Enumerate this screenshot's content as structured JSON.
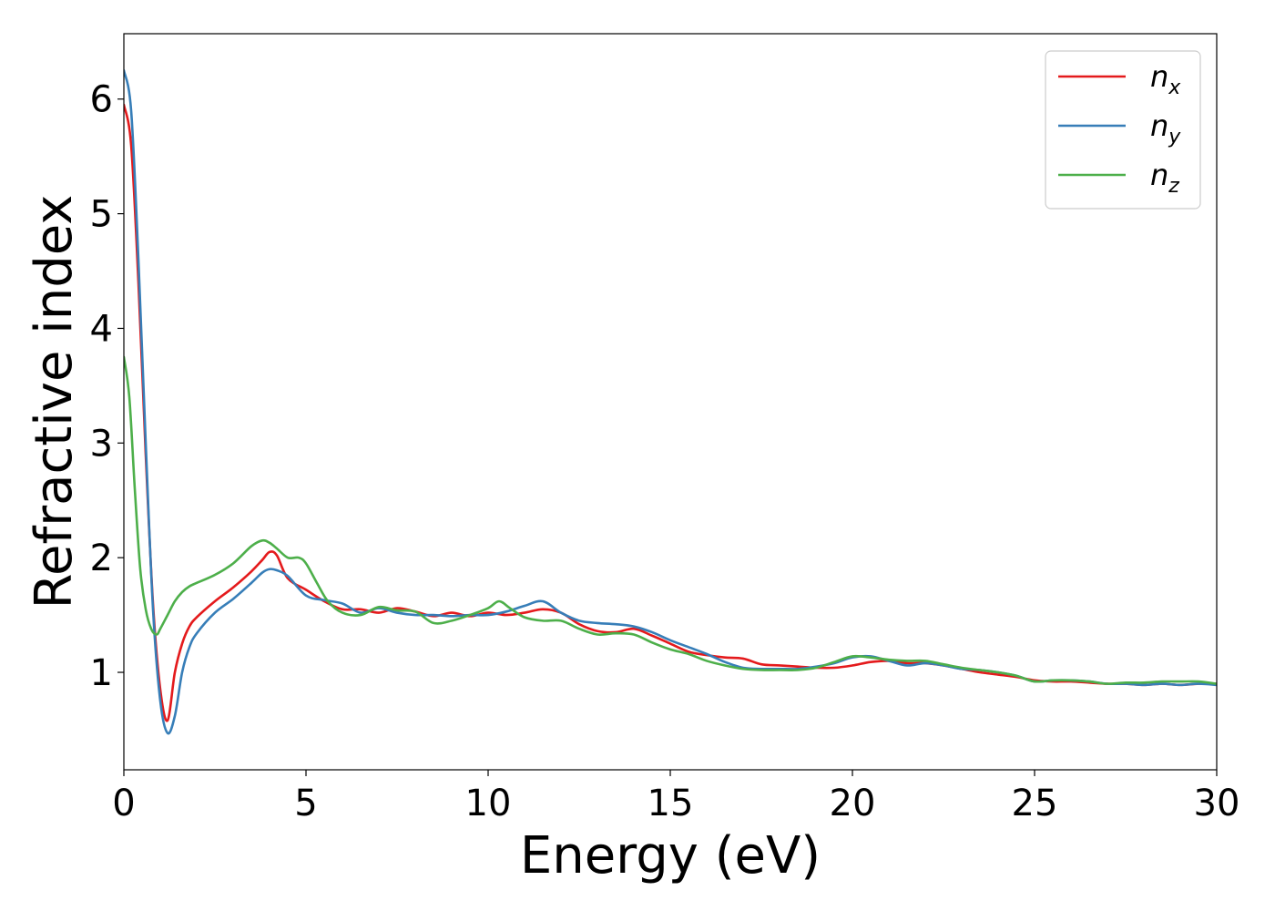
{
  "chart_data": {
    "type": "line",
    "title": "",
    "xlabel": "Energy (eV)",
    "ylabel": "Refractive index",
    "xlim": [
      0,
      30
    ],
    "ylim": [
      0.15,
      6.57
    ],
    "xticks": [
      0,
      5,
      10,
      15,
      20,
      25,
      30
    ],
    "yticks": [
      1,
      2,
      3,
      4,
      5,
      6
    ],
    "grid": false,
    "legend_position": "top-right",
    "series": [
      {
        "name": "n",
        "subscript": "x",
        "color": "#e41a1c",
        "x": [
          0,
          0.2,
          0.4,
          0.6,
          0.8,
          1.0,
          1.2,
          1.4,
          1.6,
          1.8,
          2.0,
          2.5,
          3.0,
          3.5,
          3.8,
          4.0,
          4.2,
          4.5,
          5.0,
          5.5,
          6.0,
          6.5,
          7.0,
          7.5,
          8.0,
          8.5,
          9.0,
          9.5,
          10.0,
          10.5,
          11.0,
          11.5,
          12.0,
          12.5,
          13.0,
          13.5,
          14.0,
          14.5,
          15.0,
          15.5,
          16.0,
          16.5,
          17.0,
          17.5,
          18.0,
          18.5,
          19.0,
          19.5,
          20.0,
          20.5,
          21.0,
          21.5,
          22.0,
          22.5,
          23.0,
          23.5,
          24.0,
          24.5,
          25.0,
          25.5,
          26.0,
          26.5,
          27.0,
          27.5,
          28.0,
          28.5,
          29.0,
          29.5,
          30.0
        ],
        "y": [
          5.95,
          5.6,
          4.4,
          2.9,
          1.6,
          0.85,
          0.58,
          1.0,
          1.25,
          1.4,
          1.48,
          1.62,
          1.74,
          1.88,
          1.98,
          2.05,
          2.02,
          1.82,
          1.72,
          1.62,
          1.55,
          1.55,
          1.52,
          1.56,
          1.53,
          1.49,
          1.52,
          1.49,
          1.52,
          1.5,
          1.52,
          1.55,
          1.52,
          1.42,
          1.36,
          1.35,
          1.38,
          1.32,
          1.25,
          1.18,
          1.15,
          1.13,
          1.12,
          1.07,
          1.06,
          1.05,
          1.04,
          1.04,
          1.06,
          1.09,
          1.1,
          1.08,
          1.08,
          1.06,
          1.03,
          1.0,
          0.98,
          0.96,
          0.93,
          0.92,
          0.92,
          0.91,
          0.9,
          0.9,
          0.89,
          0.9,
          0.89,
          0.9,
          0.9
        ]
      },
      {
        "name": "n",
        "subscript": "y",
        "color": "#377eb8",
        "x": [
          0,
          0.2,
          0.4,
          0.6,
          0.8,
          1.0,
          1.2,
          1.4,
          1.6,
          1.8,
          2.0,
          2.5,
          3.0,
          3.5,
          3.8,
          4.0,
          4.2,
          4.5,
          5.0,
          5.5,
          6.0,
          6.5,
          7.0,
          7.5,
          8.0,
          8.5,
          9.0,
          9.5,
          10.0,
          10.5,
          11.0,
          11.5,
          12.0,
          12.5,
          13.0,
          13.5,
          14.0,
          14.5,
          15.0,
          15.5,
          16.0,
          16.5,
          17.0,
          17.5,
          18.0,
          18.5,
          19.0,
          19.5,
          20.0,
          20.5,
          21.0,
          21.5,
          22.0,
          22.5,
          23.0,
          23.5,
          24.0,
          24.5,
          25.0,
          25.5,
          26.0,
          26.5,
          27.0,
          27.5,
          28.0,
          28.5,
          29.0,
          29.5,
          30.0
        ],
        "y": [
          6.25,
          5.9,
          4.6,
          3.0,
          1.55,
          0.75,
          0.47,
          0.62,
          1.0,
          1.22,
          1.34,
          1.52,
          1.64,
          1.78,
          1.87,
          1.9,
          1.89,
          1.84,
          1.67,
          1.63,
          1.6,
          1.52,
          1.56,
          1.52,
          1.5,
          1.5,
          1.49,
          1.5,
          1.5,
          1.53,
          1.58,
          1.62,
          1.52,
          1.45,
          1.43,
          1.42,
          1.4,
          1.35,
          1.28,
          1.22,
          1.16,
          1.09,
          1.04,
          1.03,
          1.03,
          1.03,
          1.05,
          1.08,
          1.13,
          1.14,
          1.1,
          1.06,
          1.08,
          1.06,
          1.03,
          1.02,
          1.0,
          0.97,
          0.92,
          0.93,
          0.93,
          0.92,
          0.9,
          0.9,
          0.89,
          0.9,
          0.89,
          0.9,
          0.89
        ]
      },
      {
        "name": "n",
        "subscript": "z",
        "color": "#4daf4a",
        "x": [
          0,
          0.15,
          0.3,
          0.45,
          0.6,
          0.75,
          0.9,
          1.0,
          1.2,
          1.4,
          1.6,
          1.8,
          2.0,
          2.5,
          3.0,
          3.5,
          3.8,
          4.0,
          4.2,
          4.5,
          4.8,
          5.0,
          5.3,
          5.6,
          6.0,
          6.5,
          7.0,
          7.5,
          8.0,
          8.5,
          9.0,
          9.5,
          10.0,
          10.3,
          10.6,
          11.0,
          11.5,
          12.0,
          12.5,
          13.0,
          13.5,
          14.0,
          14.5,
          15.0,
          15.5,
          16.0,
          16.5,
          17.0,
          17.5,
          18.0,
          18.5,
          19.0,
          19.5,
          20.0,
          20.5,
          21.0,
          21.5,
          22.0,
          22.5,
          23.0,
          23.5,
          24.0,
          24.5,
          25.0,
          25.5,
          26.0,
          26.5,
          27.0,
          27.5,
          28.0,
          28.5,
          29.0,
          29.5,
          30.0
        ],
        "y": [
          3.75,
          3.4,
          2.6,
          1.9,
          1.55,
          1.38,
          1.33,
          1.38,
          1.5,
          1.62,
          1.7,
          1.75,
          1.78,
          1.85,
          1.95,
          2.1,
          2.15,
          2.13,
          2.08,
          2.0,
          2.0,
          1.95,
          1.78,
          1.62,
          1.52,
          1.5,
          1.57,
          1.54,
          1.53,
          1.43,
          1.45,
          1.5,
          1.56,
          1.62,
          1.56,
          1.48,
          1.45,
          1.45,
          1.38,
          1.33,
          1.34,
          1.33,
          1.26,
          1.2,
          1.16,
          1.1,
          1.06,
          1.03,
          1.02,
          1.02,
          1.02,
          1.04,
          1.09,
          1.14,
          1.13,
          1.11,
          1.1,
          1.1,
          1.07,
          1.04,
          1.02,
          1.0,
          0.97,
          0.92,
          0.93,
          0.93,
          0.92,
          0.9,
          0.91,
          0.91,
          0.92,
          0.92,
          0.92,
          0.9
        ]
      }
    ]
  }
}
